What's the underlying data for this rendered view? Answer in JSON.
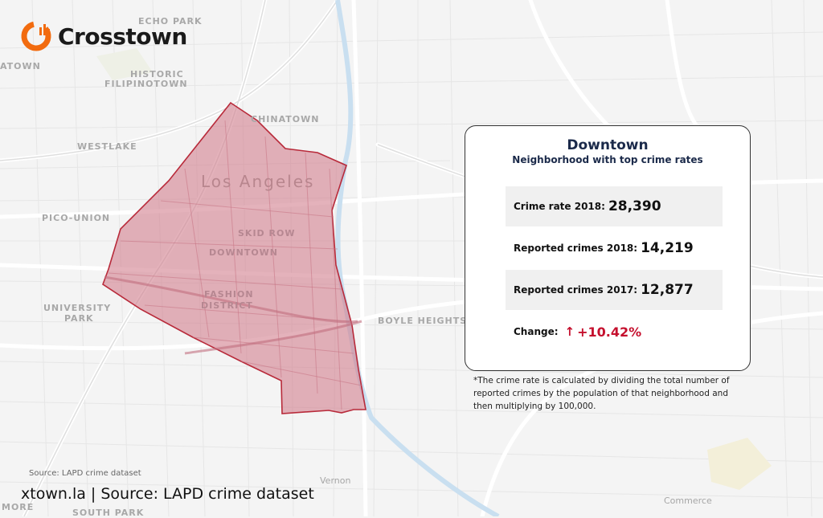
{
  "brand": {
    "name": "Crosstown",
    "color": "#f26b0f"
  },
  "map": {
    "city_label": "Los Angeles",
    "highlight_color": "#e0909f",
    "border_color": "#b82a3a",
    "neighborhood_labels": [
      "ECHO PARK",
      "HISTORIC",
      "FILIPINOTOWN",
      "CHINATOWN",
      "WESTLAKE",
      "PICO-UNION",
      "SKID ROW",
      "DOWNTOWN",
      "FASHION",
      "DISTRICT",
      "UNIVERSITY",
      "PARK",
      "BOYLE HEIGHTS",
      "ATOWN",
      "MORE",
      "SOUTH PARK"
    ],
    "place_labels": [
      "Vernon",
      "Commerce"
    ]
  },
  "card": {
    "title": "Downtown",
    "subtitle": "Neighborhood with top crime rates",
    "rows": [
      {
        "label": "Crime rate 2018:",
        "value": "28,390"
      },
      {
        "label": "Reported crimes 2018:",
        "value": "14,219"
      },
      {
        "label": "Reported crimes 2017:",
        "value": "12,877"
      },
      {
        "label": "Change:",
        "value": "+10.42%",
        "direction": "up"
      }
    ],
    "change_color": "#c5102e"
  },
  "footnote": "*The crime rate is calculated by dividing the total number of reported crimes by the population of that neighborhood and then multiplying by 100,000.",
  "source_small": "Source: LAPD crime dataset",
  "footer": "xtown.la | Source: LAPD crime dataset"
}
